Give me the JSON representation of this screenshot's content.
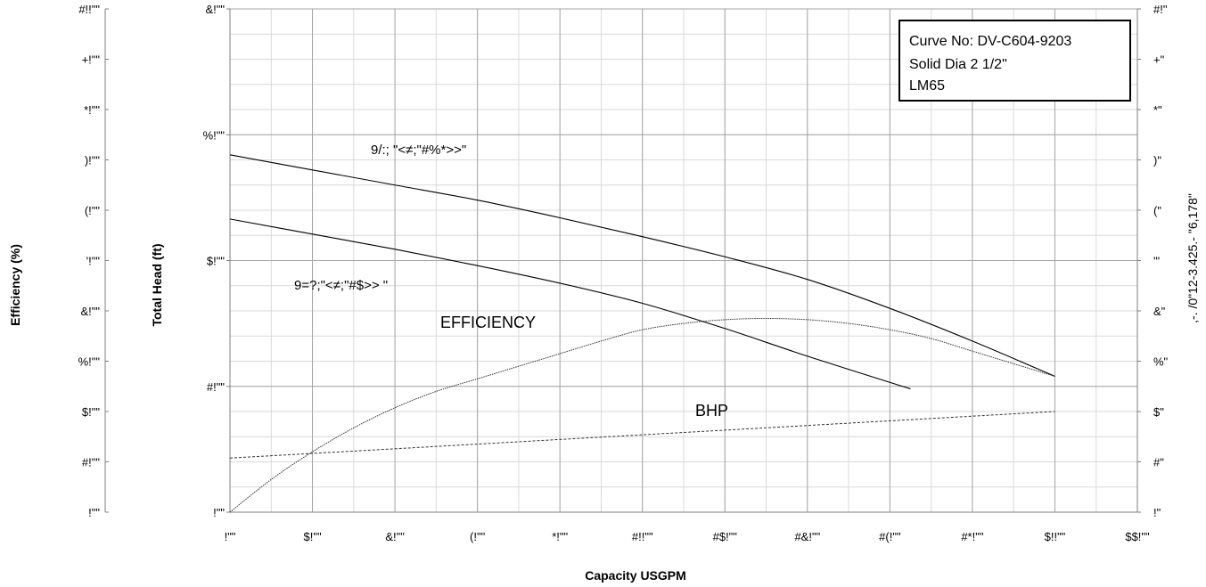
{
  "chart_data": {
    "type": "line",
    "title": "",
    "xlabel": "Capacity USGPM",
    "ylabel_head": "Total Head (ft)",
    "ylabel_efficiency": "Efficiency (%)",
    "ylabel_right": ",-. /0\"12-3.425.- \"6,178\"",
    "x_tick_labels": [
      "!\"\"",
      "$!\"\"",
      "&!\"\"",
      "(!\"\"",
      "*!\"\"",
      "#!!\"\"",
      "#$!\"\"",
      "#&!\"\"",
      "#(!\"\"",
      "#*!\"\"",
      "$!!\"\"",
      "$$!\"\""
    ],
    "x_ticks": [
      0,
      20,
      40,
      60,
      80,
      100,
      120,
      140,
      160,
      180,
      200,
      220
    ],
    "xlim": [
      0,
      220
    ],
    "head_tick_labels": [
      "!\"\"",
      "#!\"\"",
      "$!\"\"",
      "%!\"\"",
      "&!\"\""
    ],
    "head_ticks": [
      0,
      10,
      20,
      30,
      40
    ],
    "head_lim": [
      0,
      40
    ],
    "efficiency_tick_labels": [
      "!\"\"",
      "#!\"\"",
      "$!\"\"",
      "%!\"\"",
      "&!\"\"",
      "'!\"\"",
      "(!\"\"",
      ")!\"\"",
      "*!\"\"",
      "+!\"\"",
      "#!!\"\""
    ],
    "efficiency_ticks": [
      0,
      10,
      20,
      30,
      40,
      50,
      60,
      70,
      80,
      90,
      100
    ],
    "right_tick_labels": [
      "!\"",
      "#\"",
      "$\"",
      "%\"",
      "&\"",
      "'\"",
      "(\"",
      ")\"",
      "*\"",
      "+\"",
      "#!\""
    ],
    "right_ticks": [
      0,
      1,
      2,
      3,
      4,
      5,
      6,
      7,
      8,
      9,
      10
    ],
    "grid": true,
    "legend": {
      "position": "top-right",
      "lines": [
        "Curve No: DV-C604-9203",
        "Solid Dia 2 1/2\"",
        "LM65"
      ]
    },
    "annotations": {
      "upper_curve": "9/:;  \"<≠;\"#%*>>\"",
      "lower_curve": "9=?;\"<≠;\"#$>>   \"",
      "efficiency": "EFFICIENCY",
      "bhp": "BHP"
    },
    "series": [
      {
        "name": "9/:;  \"<≠;\"#%*>>\"",
        "axis": "head",
        "x": [
          0,
          20,
          40,
          60,
          80,
          100,
          120,
          140,
          160,
          180,
          200
        ],
        "y": [
          28.4,
          27.2,
          26.0,
          24.8,
          23.4,
          21.9,
          20.3,
          18.5,
          16.2,
          13.6,
          10.8
        ]
      },
      {
        "name": "9=?;\"<≠;\"#$>>   \"",
        "axis": "head",
        "x": [
          0,
          20,
          40,
          60,
          80,
          100,
          120,
          140,
          165
        ],
        "y": [
          23.3,
          22.1,
          20.9,
          19.6,
          18.2,
          16.6,
          14.6,
          12.4,
          9.8
        ]
      },
      {
        "name": "EFFICIENCY",
        "axis": "head",
        "x": [
          0,
          10,
          20,
          30,
          40,
          50,
          60,
          70,
          80,
          90,
          100,
          110,
          120,
          130,
          140,
          150,
          160,
          170,
          180,
          190,
          200
        ],
        "y": [
          0,
          2.6,
          4.8,
          6.7,
          8.3,
          9.6,
          10.6,
          11.6,
          12.6,
          13.6,
          14.5,
          15.0,
          15.3,
          15.4,
          15.3,
          15.0,
          14.5,
          13.8,
          12.8,
          11.8,
          10.8
        ]
      },
      {
        "name": "BHP",
        "axis": "head",
        "x": [
          0,
          200
        ],
        "y": [
          4.3,
          8.0
        ]
      }
    ]
  }
}
